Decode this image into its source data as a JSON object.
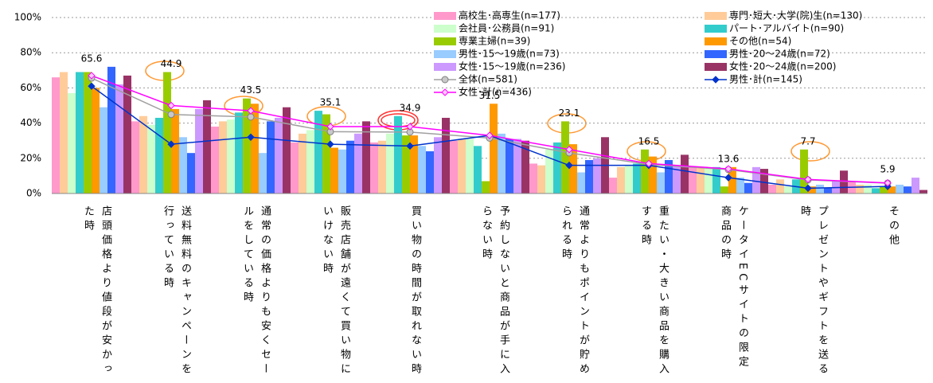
{
  "chart_data": {
    "type": "bar",
    "categories": [
      "店頭価格より値段が安かった時",
      "送料無料のキャンペーンを行っている時",
      "通常の価格よりも安くセールをしている時",
      "販売店舗が遠くて買い物にいけない時",
      "買い物の時間が取れない時",
      "予約しないと商品が手に入らない時",
      "通常よりもポイントが貯められる時",
      "重たい・大きい商品を購入する時",
      "ケータイECサイトの限定商品の時",
      "プレゼントやギフトを送る時",
      "その他"
    ],
    "series": [
      {
        "name": "高校生･高専生(n=177)",
        "color": "#ff99cc",
        "values": [
          66,
          41,
          38,
          29,
          29,
          30,
          17,
          9,
          15,
          5,
          7
        ]
      },
      {
        "name": "専門･短大･大学(院)生(n=130)",
        "color": "#ffcc99",
        "values": [
          69,
          44,
          41,
          34,
          30,
          31,
          16,
          15,
          15,
          8,
          5
        ]
      },
      {
        "name": "会社員･公務員(n=91)",
        "color": "#ccffcc",
        "values": [
          57,
          39,
          42,
          36,
          34,
          31,
          25,
          16,
          14,
          4,
          5
        ]
      },
      {
        "name": "パート･アルバイト(n=90)",
        "color": "#33cccc",
        "values": [
          69,
          43,
          46,
          47,
          44,
          27,
          29,
          17,
          15,
          8,
          3
        ]
      },
      {
        "name": "専業主婦(n=39)",
        "color": "#99cc00",
        "values": [
          69,
          69,
          54,
          45,
          33,
          7,
          41,
          25,
          4,
          25,
          4
        ]
      },
      {
        "name": "その他(n=54)",
        "color": "#ff9900",
        "values": [
          60,
          48,
          51,
          26,
          33,
          51,
          28,
          21,
          15,
          4,
          4
        ]
      },
      {
        "name": "男性･15～19歳(n=73)",
        "color": "#99ccff",
        "values": [
          49,
          32,
          23,
          25,
          27,
          34,
          12,
          12,
          9,
          5,
          5
        ]
      },
      {
        "name": "男性･20～24歳(n=72)",
        "color": "#3366ff",
        "values": [
          72,
          23,
          41,
          30,
          24,
          31,
          19,
          19,
          6,
          3,
          4
        ]
      },
      {
        "name": "女性･15～19歳(n=236)",
        "color": "#cc99ff",
        "values": [
          62,
          48,
          43,
          34,
          32,
          31,
          20,
          16,
          15,
          7,
          9
        ]
      },
      {
        "name": "女性･20～24歳(n=200)",
        "color": "#993366",
        "values": [
          67,
          53,
          49,
          41,
          43,
          30,
          32,
          22,
          14,
          13,
          2
        ]
      },
      {
        "name": "全体(n=581)",
        "color": "#a0a0a0",
        "type": "line",
        "marker": "circle",
        "data_labels": true,
        "values": [
          65.6,
          44.9,
          43.5,
          35.1,
          34.9,
          31.5,
          23.1,
          16.5,
          13.6,
          7.7,
          5.9
        ]
      },
      {
        "name": "男性･計(n=145)",
        "color": "#0033cc",
        "type": "line",
        "marker": "diamond",
        "values": [
          61,
          28,
          32,
          28,
          27,
          33,
          16,
          16,
          9,
          3,
          4
        ]
      },
      {
        "name": "女性･計(n=436)",
        "color": "#ff00ff",
        "type": "line",
        "marker": "diamond-open",
        "values": [
          67,
          50,
          47,
          38,
          38,
          33,
          25,
          17,
          14,
          8,
          6
        ]
      }
    ],
    "ylim": [
      0,
      100
    ],
    "yticks": [
      {
        "value": 0,
        "label": "0%"
      },
      {
        "value": 20,
        "label": "20%"
      },
      {
        "value": 40,
        "label": "40%"
      },
      {
        "value": 60,
        "label": "60%"
      },
      {
        "value": 80,
        "label": "80%"
      },
      {
        "value": 100,
        "label": "100%"
      }
    ],
    "grid": true
  }
}
